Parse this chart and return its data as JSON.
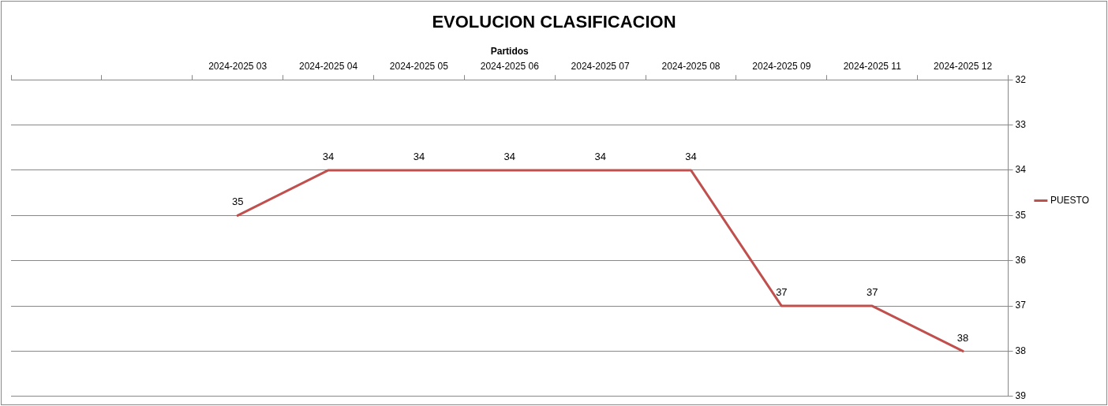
{
  "chart_data": {
    "type": "line",
    "title": "EVOLUCION CLASIFICACION",
    "xlabel": "Partidos",
    "categories": [
      null,
      null,
      "2024-2025 03",
      "2024-2025 04",
      "2024-2025 05",
      "2024-2025 06",
      "2024-2025 07",
      "2024-2025 08",
      "2024-2025 09",
      "2024-2025 11",
      "2024-2025 12"
    ],
    "series": [
      {
        "name": "PUESTO",
        "color": "#c0504d",
        "values": [
          null,
          null,
          35,
          34,
          34,
          34,
          34,
          34,
          37,
          37,
          38
        ]
      }
    ],
    "ylim": [
      39,
      32
    ],
    "yticks": [
      32,
      33,
      34,
      35,
      36,
      37,
      38,
      39
    ],
    "grid": "y",
    "legend": "right",
    "data_labels": true,
    "marker": "none",
    "line_style": "solid"
  }
}
